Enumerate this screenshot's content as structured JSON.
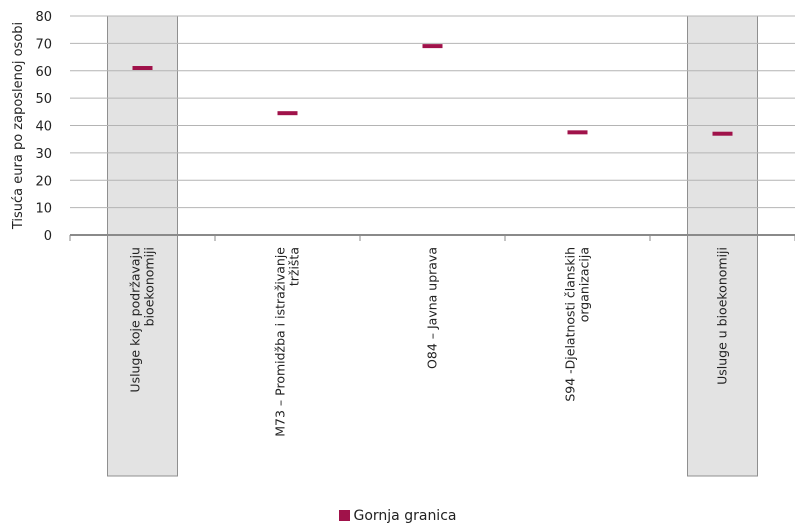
{
  "chart_data": {
    "type": "scatter",
    "categories": [
      [
        "Usluge koje podržavaju",
        "bioekonomiji"
      ],
      [
        "M73 – Promidžba i istraživanje",
        "tržišta"
      ],
      [
        "O84 – Javna uprava"
      ],
      [
        "S94 -Djelatnosti članskih",
        "organizacija"
      ],
      [
        "Usluge u bioekonomiji"
      ]
    ],
    "highlighted": [
      true,
      false,
      false,
      false,
      true
    ],
    "series": [
      {
        "name": "Gornja granica",
        "values": [
          61,
          44.5,
          69,
          37.5,
          37
        ],
        "color": "#a0124a"
      }
    ],
    "ylabel": "Tisuća eura po zaposlenoj osobi",
    "ylim": [
      0,
      80
    ],
    "yticks": [
      "0",
      "10",
      "20",
      "30",
      "40",
      "50",
      "60",
      "70",
      "80"
    ],
    "grid": true,
    "legend_position": "bottom"
  }
}
